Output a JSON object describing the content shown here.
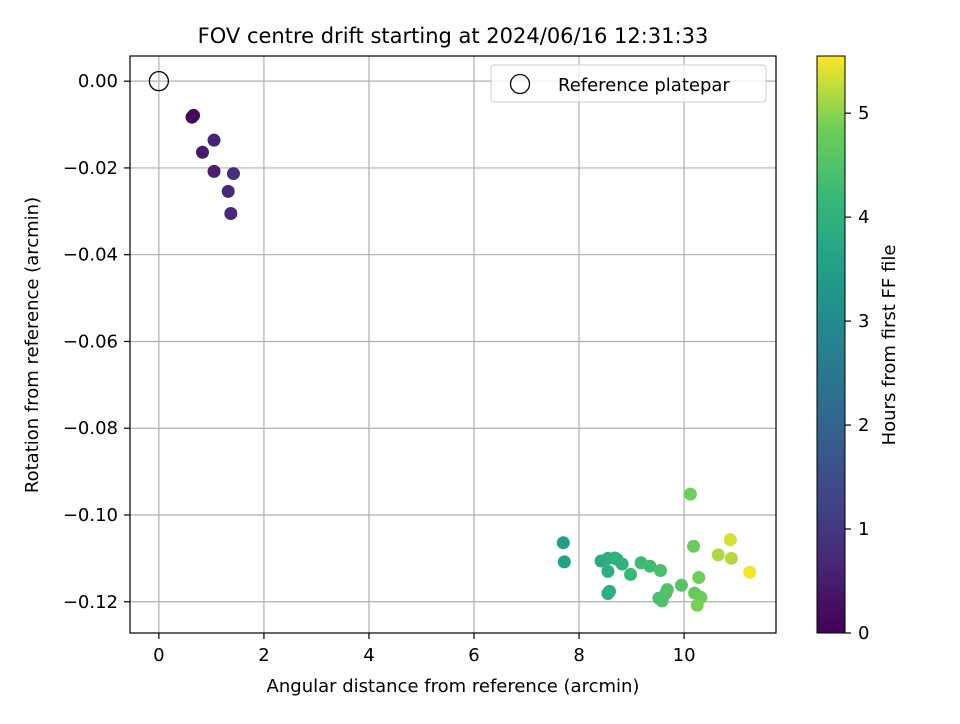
{
  "chart_data": {
    "type": "scatter",
    "title": "FOV centre drift starting at 2024/06/16 12:31:33",
    "xlabel": "Angular distance from reference (arcmin)",
    "ylabel": "Rotation from reference (arcmin)",
    "xlim": [
      -0.55,
      11.75
    ],
    "ylim": [
      -0.1272,
      0.0058
    ],
    "xticks": [
      0,
      2,
      4,
      6,
      8,
      10
    ],
    "xtick_labels": [
      "0",
      "2",
      "4",
      "6",
      "8",
      "10"
    ],
    "yticks": [
      0.0,
      -0.02,
      -0.04,
      -0.06,
      -0.08,
      -0.1,
      -0.12
    ],
    "ytick_labels": [
      "0.00",
      "−0.02",
      "−0.04",
      "−0.06",
      "−0.08",
      "−0.10",
      "−0.12"
    ],
    "grid": true,
    "colormap": "viridis",
    "colorbar": {
      "label": "Hours from first FF file",
      "range": [
        0,
        5.55
      ],
      "ticks": [
        0,
        1,
        2,
        3,
        4,
        5
      ],
      "tick_labels": [
        "0",
        "1",
        "2",
        "3",
        "4",
        "5"
      ]
    },
    "legend": {
      "position": "top-right",
      "entries": [
        "Reference platepar"
      ]
    },
    "reference_point": {
      "x": 0,
      "y": 0.0,
      "label": "Reference platepar"
    },
    "points": [
      {
        "x": 0.63,
        "y": -0.0083,
        "h": 0.05
      },
      {
        "x": 0.66,
        "y": -0.0079,
        "h": 0.15
      },
      {
        "x": 0.83,
        "y": -0.0164,
        "h": 0.45
      },
      {
        "x": 1.05,
        "y": -0.0136,
        "h": 0.6
      },
      {
        "x": 1.05,
        "y": -0.0208,
        "h": 0.55
      },
      {
        "x": 1.32,
        "y": -0.0254,
        "h": 0.75
      },
      {
        "x": 1.42,
        "y": -0.0213,
        "h": 0.85
      },
      {
        "x": 1.37,
        "y": -0.0305,
        "h": 0.7
      },
      {
        "x": 7.7,
        "y": -0.1064,
        "h": 3.55
      },
      {
        "x": 7.72,
        "y": -0.1108,
        "h": 3.6
      },
      {
        "x": 8.42,
        "y": -0.1106,
        "h": 3.85
      },
      {
        "x": 8.55,
        "y": -0.11,
        "h": 3.9
      },
      {
        "x": 8.55,
        "y": -0.113,
        "h": 3.9
      },
      {
        "x": 8.68,
        "y": -0.1099,
        "h": 3.95
      },
      {
        "x": 8.72,
        "y": -0.1102,
        "h": 4.0
      },
      {
        "x": 8.82,
        "y": -0.1113,
        "h": 4.0
      },
      {
        "x": 8.55,
        "y": -0.1181,
        "h": 3.9
      },
      {
        "x": 8.58,
        "y": -0.1176,
        "h": 3.95
      },
      {
        "x": 8.98,
        "y": -0.1137,
        "h": 4.2
      },
      {
        "x": 9.18,
        "y": -0.111,
        "h": 4.25
      },
      {
        "x": 9.35,
        "y": -0.1118,
        "h": 4.3
      },
      {
        "x": 9.55,
        "y": -0.1128,
        "h": 4.4
      },
      {
        "x": 9.52,
        "y": -0.1192,
        "h": 4.4
      },
      {
        "x": 9.58,
        "y": -0.1198,
        "h": 4.45
      },
      {
        "x": 9.65,
        "y": -0.1181,
        "h": 4.45
      },
      {
        "x": 9.68,
        "y": -0.1172,
        "h": 4.5
      },
      {
        "x": 9.95,
        "y": -0.1162,
        "h": 4.55
      },
      {
        "x": 10.12,
        "y": -0.0952,
        "h": 4.85
      },
      {
        "x": 10.18,
        "y": -0.1072,
        "h": 4.8
      },
      {
        "x": 10.2,
        "y": -0.118,
        "h": 4.75
      },
      {
        "x": 10.28,
        "y": -0.1144,
        "h": 4.85
      },
      {
        "x": 10.32,
        "y": -0.119,
        "h": 4.8
      },
      {
        "x": 10.25,
        "y": -0.1208,
        "h": 4.9
      },
      {
        "x": 10.65,
        "y": -0.1092,
        "h": 5.15
      },
      {
        "x": 10.88,
        "y": -0.1057,
        "h": 5.35
      },
      {
        "x": 10.9,
        "y": -0.11,
        "h": 5.2
      },
      {
        "x": 11.25,
        "y": -0.1132,
        "h": 5.5
      }
    ]
  }
}
